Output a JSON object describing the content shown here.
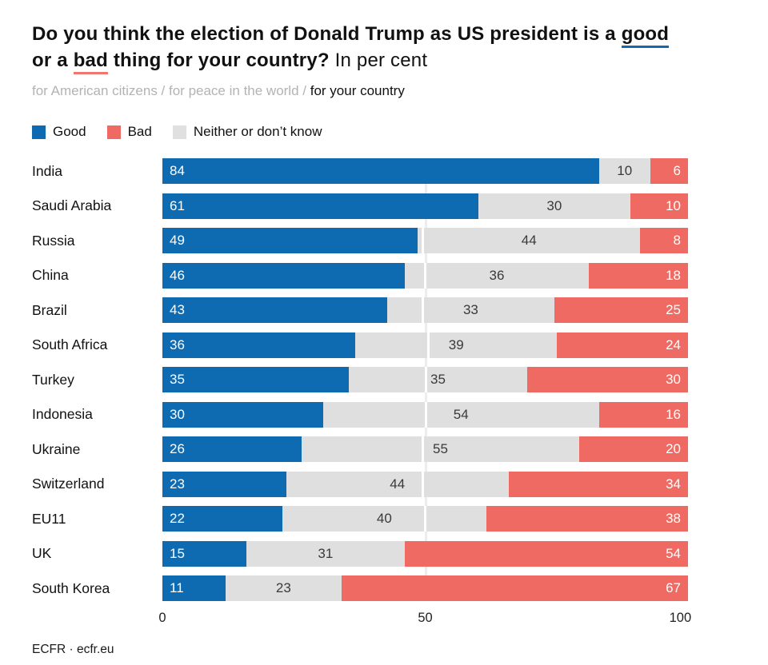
{
  "title": {
    "lead": "Do you think the election of Donald Trump as US president is a ",
    "good_word": "good",
    "mid": "or a ",
    "bad_word": "bad",
    "tail": " thing for your country?",
    "unit": " In per cent"
  },
  "subtitle": {
    "muted": "for American citizens / for peace in the world / ",
    "active": "for your country"
  },
  "legend": [
    {
      "label": "Good"
    },
    {
      "label": "Bad"
    },
    {
      "label": "Neither or don’t know"
    }
  ],
  "colors": {
    "good": "#0e6bb2",
    "bad": "#ee6a62",
    "neither": "#dfdfdf",
    "neither_swatch": "#e0e0e0",
    "good_underline": "#1268b3",
    "bad_underline": "#f0766e"
  },
  "chart_data": {
    "type": "bar",
    "orientation": "horizontal",
    "stacked": true,
    "categories": [
      "India",
      "Saudi Arabia",
      "Russia",
      "China",
      "Brazil",
      "South Africa",
      "Turkey",
      "Indonesia",
      "Ukraine",
      "Switzerland",
      "EU11",
      "UK",
      "South Korea"
    ],
    "series": [
      {
        "name": "Good",
        "values": [
          84,
          61,
          49,
          46,
          43,
          36,
          35,
          30,
          26,
          23,
          22,
          15,
          11
        ]
      },
      {
        "name": "Neither or don’t know",
        "values": [
          10,
          30,
          44,
          36,
          33,
          39,
          35,
          54,
          55,
          44,
          40,
          31,
          23
        ]
      },
      {
        "name": "Bad",
        "values": [
          6,
          10,
          8,
          18,
          25,
          24,
          30,
          16,
          20,
          34,
          38,
          54,
          67
        ]
      }
    ],
    "xlim": [
      0,
      100
    ],
    "ticks": [
      "0",
      "50",
      "100"
    ],
    "gridline_at": 50,
    "legend_position": "top",
    "value_labels": "inside"
  },
  "footer": "ECFR · ecfr.eu"
}
